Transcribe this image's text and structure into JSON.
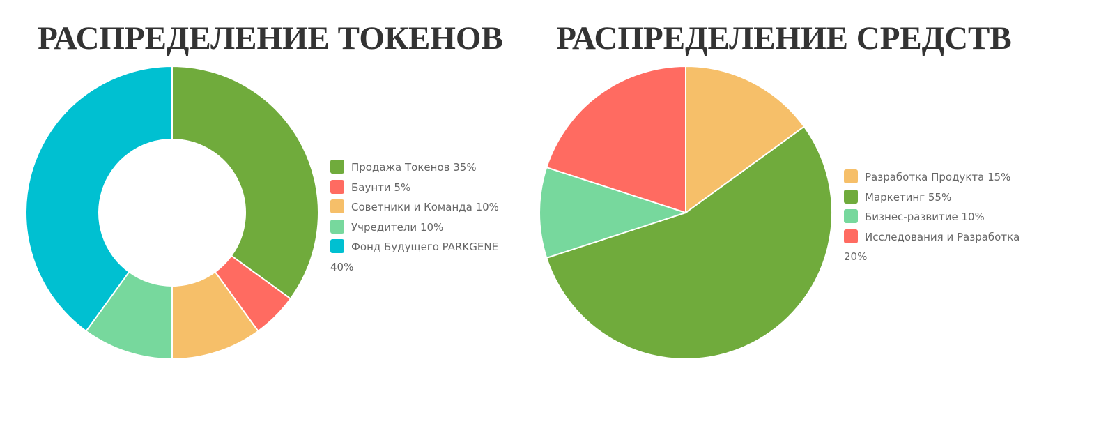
{
  "chart_data": [
    {
      "type": "donut",
      "title": "РАСПРЕДЕЛЕНИЕ ТОКЕНОВ",
      "categories": [
        "Продажа Токенов 35%",
        "Баунти 5%",
        "Советники и Команда 10%",
        "Учредители 10%",
        "Фонд Будущего PARKGENE 40%"
      ],
      "values": [
        35,
        5,
        10,
        10,
        40
      ],
      "colors": [
        "#70ab3c",
        "#ff6b61",
        "#f6bf69",
        "#77d89d",
        "#00c0d1"
      ]
    },
    {
      "type": "pie",
      "title": "РАСПРЕДЕЛЕНИЕ СРЕДСТВ",
      "categories": [
        "Разработка Продукта 15%",
        "Маркетинг 55%",
        "Бизнес-развитие 10%",
        "Исследования и Разработка 20%"
      ],
      "values": [
        15,
        55,
        10,
        20
      ],
      "colors": [
        "#f6bf69",
        "#70ab3c",
        "#77d89d",
        "#ff6b61"
      ]
    }
  ]
}
